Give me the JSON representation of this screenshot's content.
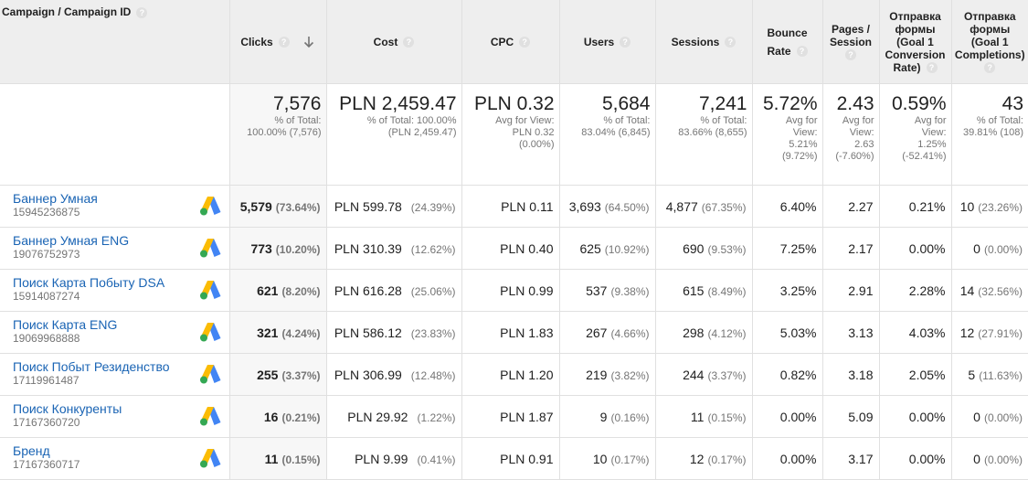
{
  "header": {
    "campaign": "Campaign / Campaign ID",
    "clicks": "Clicks",
    "cost": "Cost",
    "cpc": "CPC",
    "users": "Users",
    "sessions": "Sessions",
    "bounce_line1": "Bounce",
    "bounce_line2": "Rate",
    "pages_line1": "Pages /",
    "pages_line2": "Session",
    "conv_line1": "Отправка",
    "conv_line2": "формы",
    "conv_line3": "(Goal 1",
    "conv_line4": "Conversion",
    "conv_line5": "Rate)",
    "compl_line1": "Отправка",
    "compl_line2": "формы",
    "compl_line3": "(Goal 1",
    "compl_line4": "Completions)",
    "help_glyph": "?"
  },
  "totals": {
    "clicks": {
      "value": "7,576",
      "sub1": "% of Total:",
      "sub2": "100.00% (7,576)"
    },
    "cost": {
      "value": "PLN 2,459.47",
      "sub1": "% of Total: 100.00%",
      "sub2": "(PLN 2,459.47)"
    },
    "cpc": {
      "value": "PLN 0.32",
      "sub1": "Avg for View:",
      "sub2": "PLN 0.32",
      "sub3": "(0.00%)"
    },
    "users": {
      "value": "5,684",
      "sub1": "% of Total:",
      "sub2": "83.04% (6,845)"
    },
    "sessions": {
      "value": "7,241",
      "sub1": "% of Total:",
      "sub2": "83.66% (8,655)"
    },
    "bounce": {
      "value": "5.72%",
      "sub1": "Avg for",
      "sub2": "View:",
      "sub3": "5.21%",
      "sub4": "(9.72%)"
    },
    "pages": {
      "value": "2.43",
      "sub1": "Avg for",
      "sub2": "View:",
      "sub3": "2.63",
      "sub4": "(-7.60%)"
    },
    "conv": {
      "value": "0.59%",
      "sub1": "Avg for",
      "sub2": "View:",
      "sub3": "1.25%",
      "sub4": "(-52.41%)"
    },
    "compl": {
      "value": "43",
      "sub1": "% of Total:",
      "sub2": "39.81% (108)"
    }
  },
  "rows": [
    {
      "name": "Баннер Умная",
      "id": "15945236875",
      "clicks": "5,579",
      "clicks_pct": "(73.64%)",
      "cost": "PLN 599.78",
      "cost_pct": "(24.39%)",
      "cpc": "PLN 0.11",
      "users": "3,693",
      "users_pct": "(64.50%)",
      "sessions": "4,877",
      "sessions_pct": "(67.35%)",
      "bounce": "6.40%",
      "pages": "2.27",
      "conv": "0.21%",
      "compl": "10",
      "compl_pct": "(23.26%)"
    },
    {
      "name": "Баннер Умная ENG",
      "id": "19076752973",
      "clicks": "773",
      "clicks_pct": "(10.20%)",
      "cost": "PLN 310.39",
      "cost_pct": "(12.62%)",
      "cpc": "PLN 0.40",
      "users": "625",
      "users_pct": "(10.92%)",
      "sessions": "690",
      "sessions_pct": "(9.53%)",
      "bounce": "7.25%",
      "pages": "2.17",
      "conv": "0.00%",
      "compl": "0",
      "compl_pct": "(0.00%)"
    },
    {
      "name": "Поиск Карта Побыту DSA",
      "id": "15914087274",
      "clicks": "621",
      "clicks_pct": "(8.20%)",
      "cost": "PLN 616.28",
      "cost_pct": "(25.06%)",
      "cpc": "PLN 0.99",
      "users": "537",
      "users_pct": "(9.38%)",
      "sessions": "615",
      "sessions_pct": "(8.49%)",
      "bounce": "3.25%",
      "pages": "2.91",
      "conv": "2.28%",
      "compl": "14",
      "compl_pct": "(32.56%)"
    },
    {
      "name": "Поиск Карта ENG",
      "id": "19069968888",
      "clicks": "321",
      "clicks_pct": "(4.24%)",
      "cost": "PLN 586.12",
      "cost_pct": "(23.83%)",
      "cpc": "PLN 1.83",
      "users": "267",
      "users_pct": "(4.66%)",
      "sessions": "298",
      "sessions_pct": "(4.12%)",
      "bounce": "5.03%",
      "pages": "3.13",
      "conv": "4.03%",
      "compl": "12",
      "compl_pct": "(27.91%)"
    },
    {
      "name": "Поиск Побыт Резиденство",
      "id": "17119961487",
      "clicks": "255",
      "clicks_pct": "(3.37%)",
      "cost": "PLN 306.99",
      "cost_pct": "(12.48%)",
      "cpc": "PLN 1.20",
      "users": "219",
      "users_pct": "(3.82%)",
      "sessions": "244",
      "sessions_pct": "(3.37%)",
      "bounce": "0.82%",
      "pages": "3.18",
      "conv": "2.05%",
      "compl": "5",
      "compl_pct": "(11.63%)"
    },
    {
      "name": "Поиск Конкуренты",
      "id": "17167360720",
      "clicks": "16",
      "clicks_pct": "(0.21%)",
      "cost": "PLN 29.92",
      "cost_pct": "(1.22%)",
      "cpc": "PLN 1.87",
      "users": "9",
      "users_pct": "(0.16%)",
      "sessions": "11",
      "sessions_pct": "(0.15%)",
      "bounce": "0.00%",
      "pages": "5.09",
      "conv": "0.00%",
      "compl": "0",
      "compl_pct": "(0.00%)"
    },
    {
      "name": "Бренд",
      "id": "17167360717",
      "clicks": "11",
      "clicks_pct": "(0.15%)",
      "cost": "PLN 9.99",
      "cost_pct": "(0.41%)",
      "cpc": "PLN 0.91",
      "users": "10",
      "users_pct": "(0.17%)",
      "sessions": "12",
      "sessions_pct": "(0.17%)",
      "bounce": "0.00%",
      "pages": "3.17",
      "conv": "0.00%",
      "compl": "0",
      "compl_pct": "(0.00%)"
    }
  ],
  "colors": {
    "link": "#1a64b4",
    "header_bg": "#eeeeee",
    "muted": "#757575",
    "ads_blue": "#4285f4",
    "ads_yellow": "#fbbc04",
    "ads_green": "#34a853"
  },
  "icons": {
    "sort": "arrow-down-icon",
    "help": "help-icon",
    "ads": "google-ads-icon"
  }
}
